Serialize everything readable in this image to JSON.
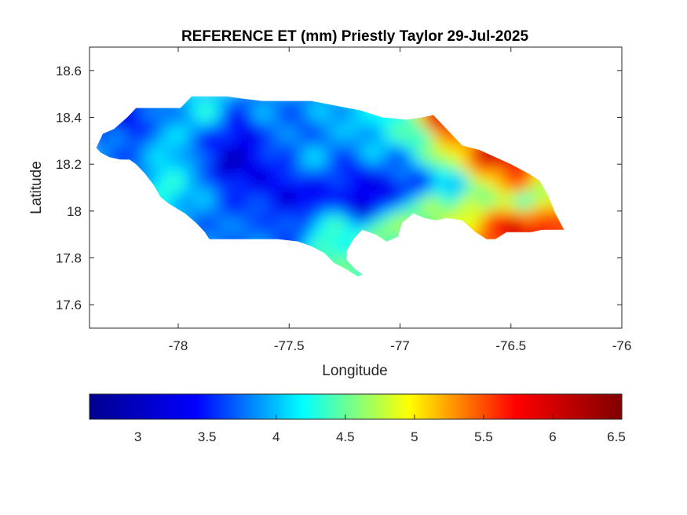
{
  "figure": {
    "title": "REFERENCE ET (mm) Priestly Taylor 29-Jul-2025"
  },
  "axes": {
    "xlabel": "Longitude",
    "ylabel": "Latitude",
    "xlim": [
      -78.4,
      -76
    ],
    "ylim": [
      17.5,
      18.7
    ],
    "x_ticks": [
      {
        "value": -78,
        "label": "-78"
      },
      {
        "value": -77.5,
        "label": "-77.5"
      },
      {
        "value": -77,
        "label": "-77"
      },
      {
        "value": -76.5,
        "label": "-76.5"
      },
      {
        "value": -76,
        "label": "-76"
      }
    ],
    "y_ticks": [
      {
        "value": 18.6,
        "label": "18.6"
      },
      {
        "value": 18.4,
        "label": "18.4"
      },
      {
        "value": 18.2,
        "label": "18.2"
      },
      {
        "value": 18,
        "label": "18"
      },
      {
        "value": 17.8,
        "label": "17.8"
      },
      {
        "value": 17.6,
        "label": "17.6"
      }
    ]
  },
  "colorbar": {
    "colormap": "jet",
    "range": [
      2.65,
      6.5
    ],
    "ticks": [
      {
        "value": 3,
        "label": "3"
      },
      {
        "value": 3.5,
        "label": "3.5"
      },
      {
        "value": 4,
        "label": "4"
      },
      {
        "value": 4.5,
        "label": "4.5"
      },
      {
        "value": 5,
        "label": "5"
      },
      {
        "value": 5.5,
        "label": "5.5"
      },
      {
        "value": 6,
        "label": "6"
      },
      {
        "value": 6.5,
        "label": "6.5"
      }
    ],
    "stops": [
      "#00008f",
      "#0000ff",
      "#00ffff",
      "#ffff00",
      "#ff0000",
      "#800000"
    ]
  },
  "map_data": {
    "outline": [
      [
        -78.37,
        18.27
      ],
      [
        -78.34,
        18.33
      ],
      [
        -78.29,
        18.35
      ],
      [
        -78.23,
        18.4
      ],
      [
        -78.19,
        18.44
      ],
      [
        -78.11,
        18.44
      ],
      [
        -78.03,
        18.44
      ],
      [
        -77.99,
        18.44
      ],
      [
        -77.94,
        18.49
      ],
      [
        -77.87,
        18.49
      ],
      [
        -77.78,
        18.49
      ],
      [
        -77.71,
        18.48
      ],
      [
        -77.62,
        18.47
      ],
      [
        -77.52,
        18.47
      ],
      [
        -77.4,
        18.47
      ],
      [
        -77.29,
        18.45
      ],
      [
        -77.18,
        18.43
      ],
      [
        -77.08,
        18.4
      ],
      [
        -76.97,
        18.39
      ],
      [
        -76.9,
        18.4
      ],
      [
        -76.85,
        18.41
      ],
      [
        -76.8,
        18.36
      ],
      [
        -76.76,
        18.32
      ],
      [
        -76.72,
        18.28
      ],
      [
        -76.64,
        18.26
      ],
      [
        -76.57,
        18.23
      ],
      [
        -76.5,
        18.2
      ],
      [
        -76.42,
        18.16
      ],
      [
        -76.37,
        18.13
      ],
      [
        -76.33,
        18.06
      ],
      [
        -76.3,
        17.99
      ],
      [
        -76.26,
        17.92
      ],
      [
        -76.29,
        17.92
      ],
      [
        -76.36,
        17.92
      ],
      [
        -76.41,
        17.91
      ],
      [
        -76.47,
        17.91
      ],
      [
        -76.52,
        17.91
      ],
      [
        -76.57,
        17.88
      ],
      [
        -76.61,
        17.88
      ],
      [
        -76.66,
        17.91
      ],
      [
        -76.72,
        17.96
      ],
      [
        -76.79,
        17.97
      ],
      [
        -76.84,
        17.96
      ],
      [
        -76.89,
        17.97
      ],
      [
        -76.94,
        17.99
      ],
      [
        -76.99,
        17.95
      ],
      [
        -77.01,
        17.89
      ],
      [
        -77.06,
        17.87
      ],
      [
        -77.11,
        17.9
      ],
      [
        -77.17,
        17.92
      ],
      [
        -77.21,
        17.88
      ],
      [
        -77.24,
        17.83
      ],
      [
        -77.24,
        17.79
      ],
      [
        -77.2,
        17.75
      ],
      [
        -77.17,
        17.73
      ],
      [
        -77.19,
        17.72
      ],
      [
        -77.24,
        17.75
      ],
      [
        -77.3,
        17.78
      ],
      [
        -77.34,
        17.82
      ],
      [
        -77.4,
        17.85
      ],
      [
        -77.46,
        17.87
      ],
      [
        -77.55,
        17.88
      ],
      [
        -77.63,
        17.88
      ],
      [
        -77.72,
        17.88
      ],
      [
        -77.79,
        17.88
      ],
      [
        -77.86,
        17.88
      ],
      [
        -77.88,
        17.91
      ],
      [
        -77.92,
        17.95
      ],
      [
        -77.97,
        17.99
      ],
      [
        -78.04,
        18.03
      ],
      [
        -78.08,
        18.06
      ],
      [
        -78.11,
        18.11
      ],
      [
        -78.15,
        18.16
      ],
      [
        -78.19,
        18.2
      ],
      [
        -78.22,
        18.22
      ],
      [
        -78.26,
        18.22
      ],
      [
        -78.31,
        18.23
      ],
      [
        -78.35,
        18.25
      ]
    ],
    "et_points": [
      [
        -78.3,
        18.3,
        3.6
      ],
      [
        -78.22,
        18.36,
        3.1
      ],
      [
        -78.14,
        18.38,
        3.4
      ],
      [
        -78.08,
        18.3,
        3.9
      ],
      [
        -78.02,
        18.22,
        4.0
      ],
      [
        -78.05,
        18.1,
        4.2
      ],
      [
        -77.95,
        18.38,
        3.8
      ],
      [
        -77.88,
        18.42,
        4.1
      ],
      [
        -77.85,
        18.27,
        3.2
      ],
      [
        -77.78,
        18.18,
        2.9
      ],
      [
        -77.72,
        18.33,
        3.0
      ],
      [
        -77.66,
        18.22,
        3.0
      ],
      [
        -77.74,
        18.0,
        3.4
      ],
      [
        -77.6,
        18.4,
        3.7
      ],
      [
        -77.55,
        18.28,
        3.5
      ],
      [
        -77.52,
        18.1,
        3.0
      ],
      [
        -77.45,
        18.37,
        3.5
      ],
      [
        -77.4,
        18.22,
        3.8
      ],
      [
        -77.38,
        18.05,
        3.0
      ],
      [
        -77.33,
        17.93,
        4.3
      ],
      [
        -77.28,
        17.8,
        4.4
      ],
      [
        -77.5,
        17.95,
        3.3
      ],
      [
        -77.65,
        17.92,
        3.6
      ],
      [
        -77.85,
        17.95,
        3.6
      ],
      [
        -77.32,
        18.42,
        3.8
      ],
      [
        -77.2,
        18.4,
        3.9
      ],
      [
        -77.22,
        18.15,
        3.1
      ],
      [
        -77.15,
        18.02,
        2.8
      ],
      [
        -77.12,
        18.3,
        3.9
      ],
      [
        -77.05,
        18.1,
        3.0
      ],
      [
        -77.1,
        17.92,
        4.6
      ],
      [
        -76.97,
        17.95,
        4.6
      ],
      [
        -76.9,
        18.3,
        4.4
      ],
      [
        -76.93,
        18.12,
        3.3
      ],
      [
        -76.98,
        18.36,
        4.3
      ],
      [
        -76.85,
        18.0,
        4.7
      ],
      [
        -76.8,
        18.35,
        5.4
      ],
      [
        -76.72,
        18.25,
        5.3
      ],
      [
        -76.75,
        18.12,
        3.6
      ],
      [
        -76.82,
        18.38,
        6.4
      ],
      [
        -76.7,
        18.02,
        4.9
      ],
      [
        -76.63,
        18.18,
        5.6
      ],
      [
        -76.62,
        18.05,
        4.3
      ],
      [
        -76.58,
        17.95,
        5.9
      ],
      [
        -76.55,
        18.15,
        5.2
      ],
      [
        -76.45,
        18.12,
        5.9
      ],
      [
        -76.43,
        18.05,
        4.0
      ],
      [
        -76.4,
        17.95,
        5.7
      ],
      [
        -76.35,
        18.08,
        4.7
      ],
      [
        -76.3,
        17.96,
        5.6
      ],
      [
        -76.47,
        17.92,
        6.2
      ],
      [
        -76.6,
        18.24,
        6.3
      ],
      [
        -76.52,
        18.22,
        6.4
      ],
      [
        -76.38,
        17.93,
        6.3
      ],
      [
        -77.0,
        18.22,
        3.6
      ],
      [
        -77.25,
        18.28,
        3.6
      ],
      [
        -77.6,
        18.08,
        3.2
      ],
      [
        -77.9,
        18.1,
        3.8
      ],
      [
        -78.2,
        18.25,
        3.5
      ],
      [
        -77.18,
        17.76,
        4.4
      ]
    ]
  }
}
